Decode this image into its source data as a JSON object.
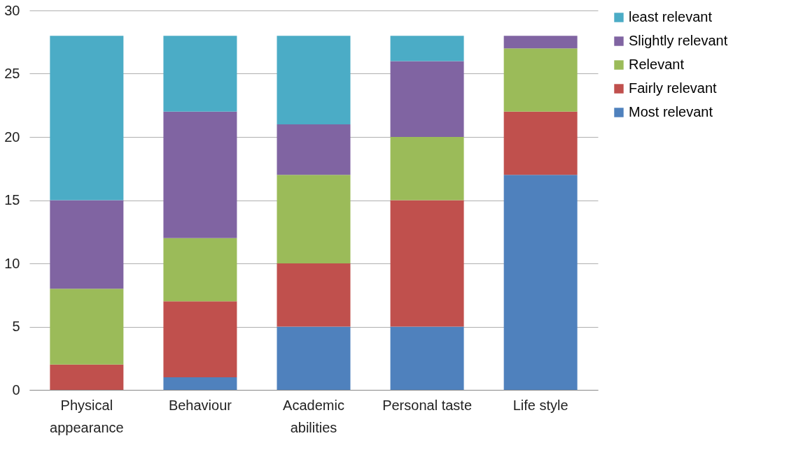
{
  "chart_data": {
    "type": "bar",
    "stacked": true,
    "categories": [
      "Physical\nappearance",
      "Behaviour",
      "Academic\nabilities",
      "Personal taste",
      "Life style"
    ],
    "series": [
      {
        "name": "Most relevant",
        "color": "#4f81bd",
        "values": [
          0,
          1,
          5,
          5,
          17
        ]
      },
      {
        "name": "Fairly relevant",
        "color": "#c0504d",
        "values": [
          2,
          6,
          5,
          10,
          5
        ]
      },
      {
        "name": "Relevant",
        "color": "#9bbb59",
        "values": [
          6,
          5,
          7,
          5,
          5
        ]
      },
      {
        "name": "Slightly relevant",
        "color": "#8064a2",
        "values": [
          7,
          10,
          4,
          6,
          1
        ]
      },
      {
        "name": "least relevant",
        "color": "#4bacc6",
        "values": [
          13,
          6,
          7,
          2,
          0
        ]
      }
    ],
    "ylim": [
      0,
      30
    ],
    "yticks": [
      0,
      5,
      10,
      15,
      20,
      25,
      30
    ],
    "grid": "y",
    "legend": "right"
  }
}
